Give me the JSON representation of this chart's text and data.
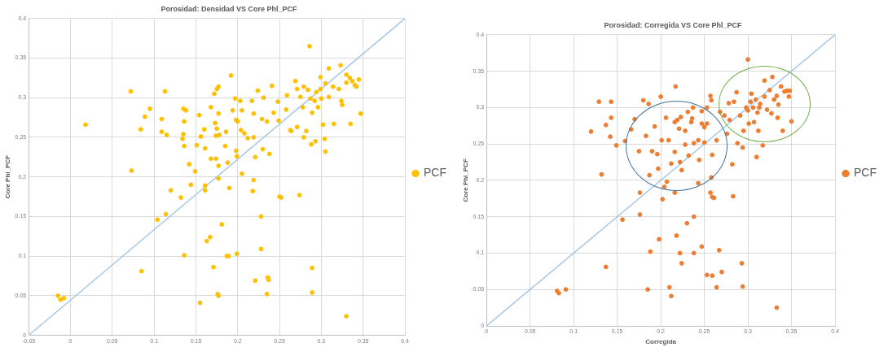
{
  "chart_data": [
    {
      "type": "scatter",
      "title": "Porosidad: Densidad VS Core Phl_PCF",
      "ylabel": "Core Phl_PCF",
      "xlim": [
        -0.05,
        0.4
      ],
      "ylim": [
        0,
        0.4
      ],
      "xticks": [
        -0.05,
        0,
        0.05,
        0.1,
        0.15,
        0.2,
        0.25,
        0.3,
        0.35,
        0.4
      ],
      "yticks": [
        0,
        0.05,
        0.1,
        0.15,
        0.2,
        0.25,
        0.3,
        0.35,
        0.4
      ],
      "grid": true,
      "legend": "right",
      "series": [
        {
          "name": "PCF",
          "color": "#ffc000",
          "marker": "circle",
          "x": [
            0.018,
            0.072,
            0.113,
            0.095,
            0.089,
            0.084,
            0.109,
            0.109,
            0.115,
            0.073,
            0.12,
            0.104,
            0.114,
            0.132,
            0.144,
            0.142,
            0.149,
            0.136,
            0.134,
            0.135,
            0.136,
            0.135,
            0.138,
            0.154,
            0.151,
            0.156,
            0.16,
            0.161,
            0.168,
            0.172,
            0.175,
            0.177,
            0.173,
            0.177,
            0.175,
            0.178,
            0.174,
            0.168,
            0.174,
            0.177,
            0.177,
            0.161,
            0.161,
            0.186,
            0.185,
            0.188,
            0.192,
            0.197,
            0.194,
            0.198,
            0.2,
            0.198,
            0.199,
            0.203,
            0.205,
            0.204,
            0.208,
            0.212,
            0.205,
            0.217,
            0.219,
            0.224,
            0.219,
            0.221,
            0.219,
            0.218,
            0.231,
            0.229,
            0.23,
            0.238,
            0.241,
            0.243,
            0.235,
            0.249,
            0.248,
            0.259,
            0.258,
            0.263,
            0.269,
            0.271,
            0.271,
            0.278,
            0.275,
            0.279,
            0.284,
            0.286,
            0.287,
            0.289,
            0.292,
            0.294,
            0.296,
            0.282,
            0.279,
            0.288,
            0.293,
            0.299,
            0.299,
            0.3,
            0.302,
            0.304,
            0.305,
            0.305,
            0.309,
            0.309,
            0.314,
            0.315,
            0.321,
            0.323,
            0.324,
            0.33,
            0.33,
            0.334,
            0.335,
            0.337,
            0.34,
            0.342,
            0.345,
            0.347,
            0.325,
            0.264,
            0.274,
            0.25,
            0.252,
            0.228,
            0.228,
            0.235,
            0.236,
            0.237,
            0.221,
            0.289,
            0.289,
            0.33,
            0.199,
            0.189,
            0.187,
            0.181,
            0.167,
            0.163,
            0.171,
            0.176,
            0.177,
            0.155,
            0.136,
            0.085,
            -0.015,
            -0.012,
            -0.008,
            0.19
          ],
          "values": [
            0.266,
            0.308,
            0.308,
            0.286,
            0.276,
            0.26,
            0.273,
            0.257,
            0.253,
            0.208,
            0.183,
            0.146,
            0.153,
            0.174,
            0.19,
            0.216,
            0.207,
            0.239,
            0.248,
            0.254,
            0.27,
            0.286,
            0.284,
            0.278,
            0.24,
            0.251,
            0.26,
            0.236,
            0.288,
            0.305,
            0.311,
            0.314,
            0.268,
            0.28,
            0.261,
            0.253,
            0.252,
            0.223,
            0.223,
            0.214,
            0.198,
            0.189,
            0.183,
            0.257,
            0.239,
            0.218,
            0.328,
            0.299,
            0.284,
            0.272,
            0.27,
            0.233,
            0.226,
            0.296,
            0.284,
            0.259,
            0.255,
            0.249,
            0.204,
            0.296,
            0.28,
            0.309,
            0.25,
            0.225,
            0.196,
            0.182,
            0.3,
            0.273,
            0.235,
            0.229,
            0.315,
            0.281,
            0.27,
            0.271,
            0.295,
            0.303,
            0.285,
            0.259,
            0.321,
            0.311,
            0.263,
            0.288,
            0.301,
            0.314,
            0.31,
            0.365,
            0.299,
            0.281,
            0.296,
            0.307,
            0.288,
            0.258,
            0.25,
            0.241,
            0.245,
            0.326,
            0.311,
            0.299,
            0.266,
            0.248,
            0.232,
            0.318,
            0.337,
            0.301,
            0.314,
            0.267,
            0.311,
            0.341,
            0.296,
            0.319,
            0.329,
            0.325,
            0.267,
            0.321,
            0.316,
            0.314,
            0.323,
            0.28,
            0.291,
            0.258,
            0.177,
            0.175,
            0.174,
            0.15,
            0.109,
            0.052,
            0.073,
            0.07,
            0.069,
            0.085,
            0.054,
            0.024,
            0.103,
            0.1,
            0.1,
            0.14,
            0.124,
            0.119,
            0.086,
            0.052,
            0.05,
            0.041,
            0.101,
            0.081,
            0.05,
            0.045,
            0.047,
            0.186
          ]
        },
        {
          "type": "line",
          "color": "#9dc3e6",
          "marker": "none",
          "x": [
            -0.05,
            0.4
          ],
          "values": [
            0,
            0.4
          ]
        }
      ]
    },
    {
      "type": "scatter",
      "title": "Porosidad: Corregida VS Core Phl_PCF",
      "xlabel": "Corregida",
      "ylabel": "Core Phl_PCF",
      "xlim": [
        0,
        0.4
      ],
      "ylim": [
        0,
        0.4
      ],
      "xticks": [
        0,
        0.05,
        0.1,
        0.15,
        0.2,
        0.25,
        0.3,
        0.35,
        0.4
      ],
      "yticks": [
        0,
        0.05,
        0.1,
        0.15,
        0.2,
        0.25,
        0.3,
        0.35,
        0.4
      ],
      "grid": true,
      "legend": "right",
      "series": [
        {
          "name": "PCF",
          "color": "#ed7d31",
          "marker": "circle",
          "x": [
            0.129,
            0.143,
            0.143,
            0.137,
            0.142,
            0.12,
            0.149,
            0.132,
            0.159,
            0.17,
            0.166,
            0.18,
            0.186,
            0.2,
            0.217,
            0.175,
            0.183,
            0.19,
            0.193,
            0.196,
            0.197,
            0.187,
            0.176,
            0.202,
            0.204,
            0.207,
            0.201,
            0.206,
            0.209,
            0.212,
            0.216,
            0.216,
            0.216,
            0.219,
            0.223,
            0.221,
            0.222,
            0.224,
            0.228,
            0.228,
            0.231,
            0.232,
            0.235,
            0.236,
            0.237,
            0.238,
            0.243,
            0.243,
            0.244,
            0.247,
            0.247,
            0.25,
            0.25,
            0.253,
            0.253,
            0.258,
            0.259,
            0.257,
            0.258,
            0.264,
            0.268,
            0.273,
            0.276,
            0.278,
            0.279,
            0.282,
            0.284,
            0.287,
            0.288,
            0.291,
            0.294,
            0.295,
            0.298,
            0.3,
            0.3,
            0.301,
            0.303,
            0.304,
            0.306,
            0.307,
            0.309,
            0.31,
            0.311,
            0.312,
            0.314,
            0.317,
            0.319,
            0.319,
            0.322,
            0.325,
            0.327,
            0.328,
            0.33,
            0.333,
            0.334,
            0.335,
            0.338,
            0.34,
            0.342,
            0.345,
            0.347,
            0.348,
            0.35,
            0.313,
            0.283,
            0.259,
            0.261,
            0.257,
            0.238,
            0.23,
            0.218,
            0.198,
            0.188,
            0.222,
            0.238,
            0.247,
            0.267,
            0.224,
            0.293,
            0.253,
            0.259,
            0.27,
            0.264,
            0.294,
            0.21,
            0.212,
            0.185,
            0.333,
            0.176,
            0.156,
            0.137,
            0.091,
            0.081,
            0.083
          ],
          "values": [
            0.308,
            0.308,
            0.286,
            0.276,
            0.26,
            0.267,
            0.248,
            0.208,
            0.254,
            0.284,
            0.27,
            0.31,
            0.305,
            0.315,
            0.329,
            0.24,
            0.261,
            0.24,
            0.274,
            0.236,
            0.216,
            0.207,
            0.183,
            0.174,
            0.191,
            0.198,
            0.255,
            0.286,
            0.255,
            0.223,
            0.239,
            0.183,
            0.28,
            0.283,
            0.287,
            0.271,
            0.225,
            0.214,
            0.268,
            0.249,
            0.294,
            0.234,
            0.28,
            0.285,
            0.3,
            0.251,
            0.255,
            0.196,
            0.228,
            0.295,
            0.278,
            0.273,
            0.252,
            0.278,
            0.3,
            0.204,
            0.235,
            0.316,
            0.31,
            0.255,
            0.294,
            0.289,
            0.264,
            0.306,
            0.283,
            0.222,
            0.308,
            0.321,
            0.251,
            0.289,
            0.245,
            0.268,
            0.3,
            0.366,
            0.296,
            0.278,
            0.308,
            0.319,
            0.3,
            0.28,
            0.311,
            0.232,
            0.293,
            0.268,
            0.305,
            0.248,
            0.337,
            0.315,
            0.297,
            0.324,
            0.292,
            0.342,
            0.311,
            0.316,
            0.286,
            0.304,
            0.329,
            0.268,
            0.322,
            0.323,
            0.315,
            0.323,
            0.281,
            0.3,
            0.178,
            0.177,
            0.176,
            0.183,
            0.15,
            0.141,
            0.124,
            0.119,
            0.102,
            0.1,
            0.1,
            0.109,
            0.104,
            0.086,
            0.086,
            0.07,
            0.069,
            0.074,
            0.053,
            0.054,
            0.053,
            0.041,
            0.05,
            0.025,
            0.153,
            0.146,
            0.081,
            0.05,
            0.048,
            0.045
          ]
        },
        {
          "type": "line",
          "color": "#9dc3e6",
          "marker": "none",
          "x": [
            0,
            0.4
          ],
          "values": [
            0,
            0.4
          ]
        }
      ]
    }
  ]
}
